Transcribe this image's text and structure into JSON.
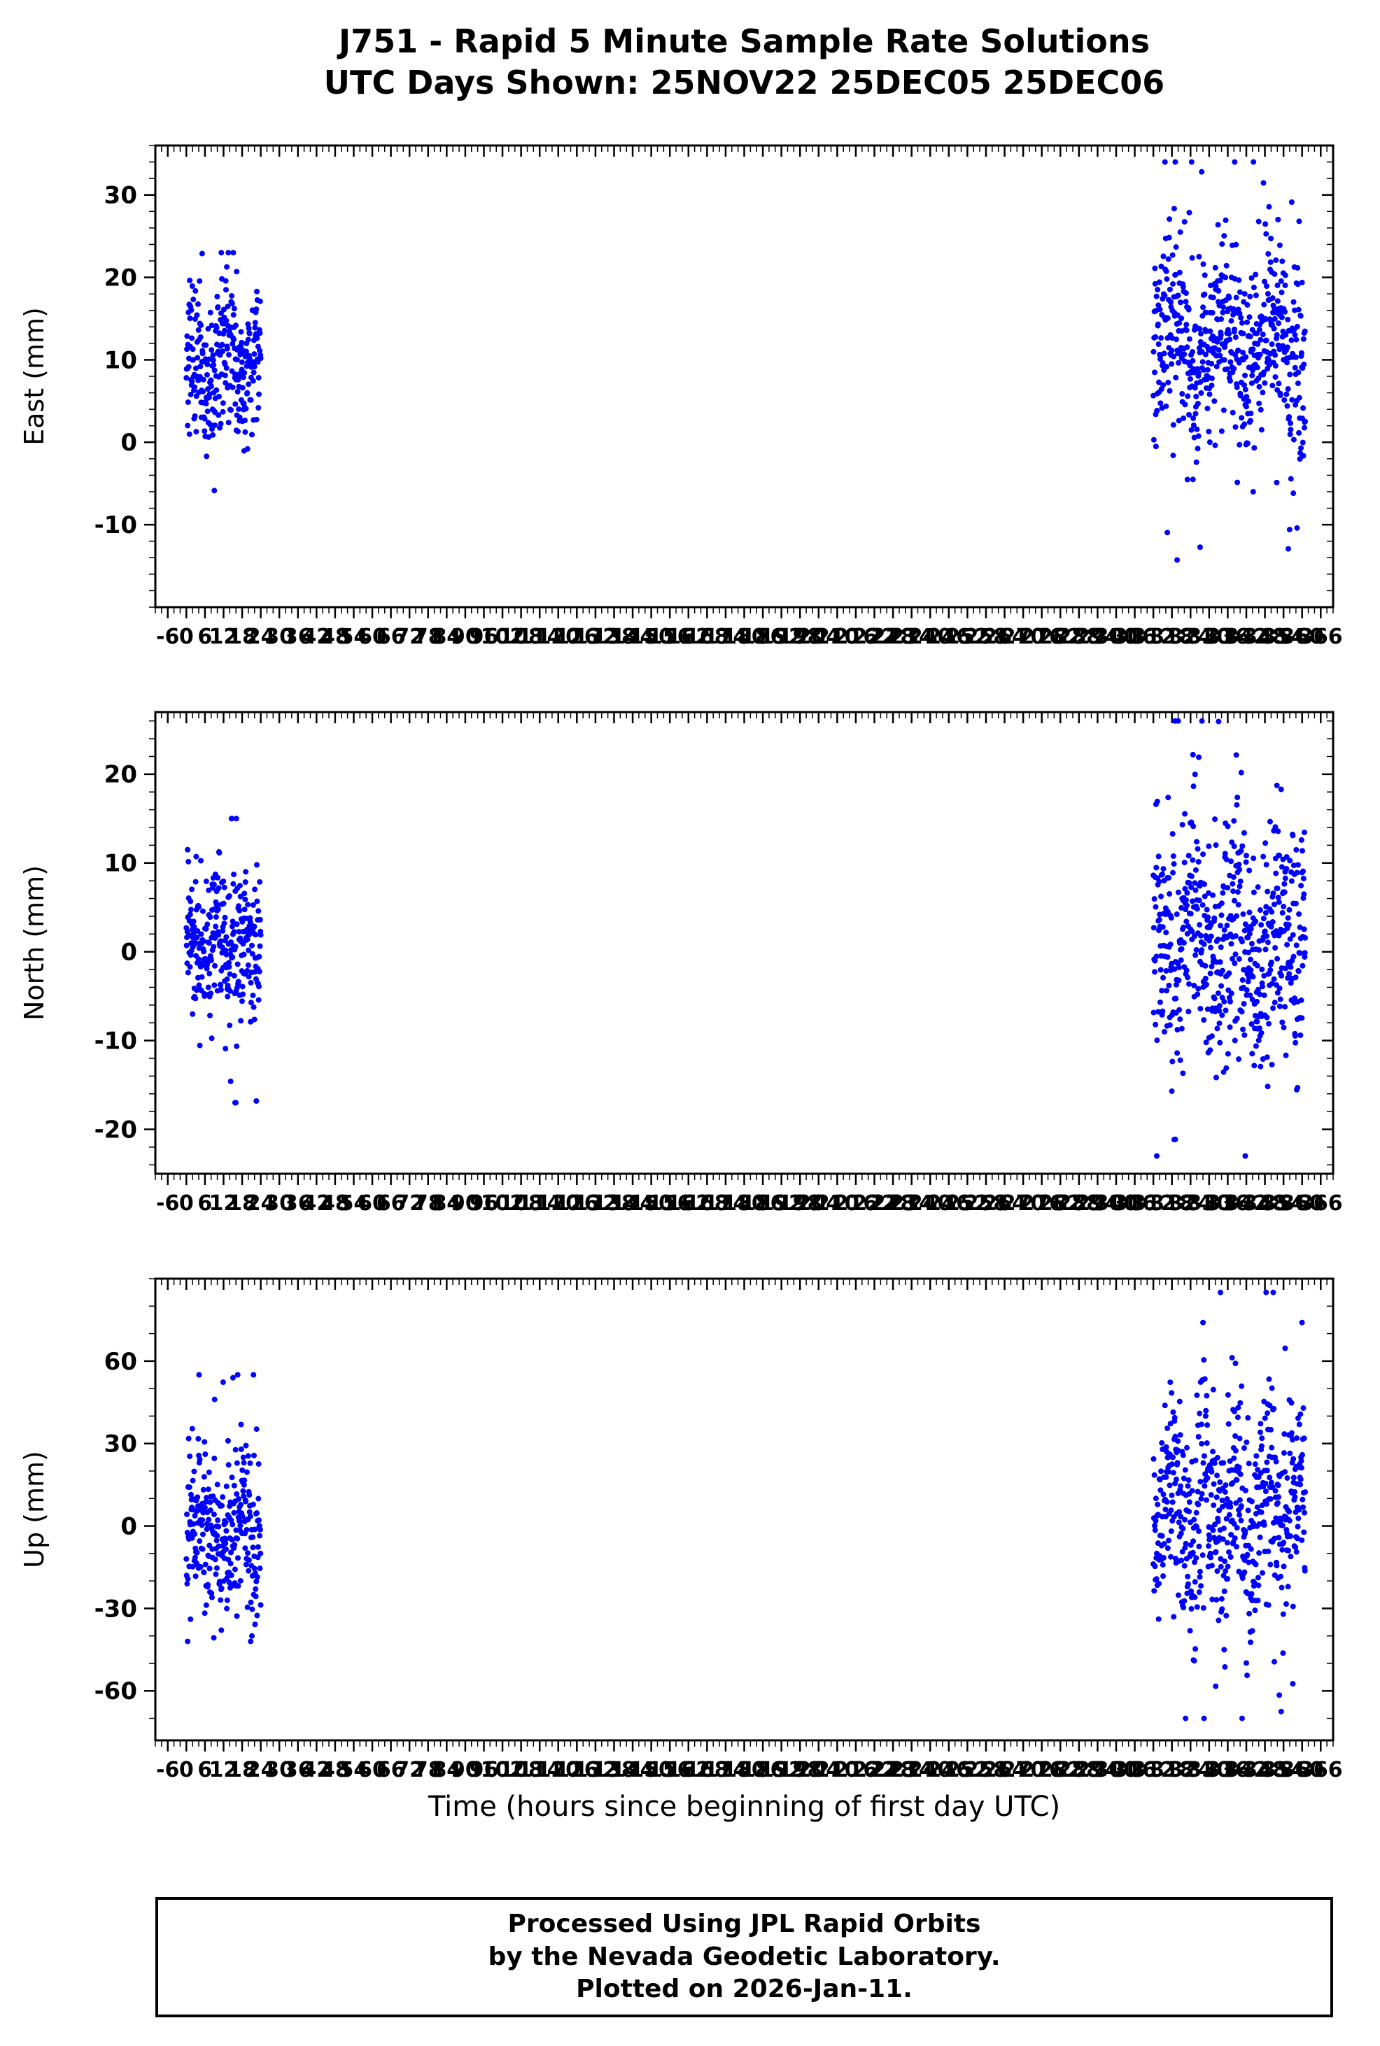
{
  "title": {
    "line1": "J751 - Rapid 5 Minute Sample Rate Solutions",
    "line2": "UTC Days Shown:  25NOV22 25DEC05 25DEC06"
  },
  "xaxis": {
    "label": "Time (hours since beginning of first day UTC)",
    "min": -10,
    "max": 370,
    "tick_start": -6,
    "tick_end": 366,
    "tick_step": 6,
    "minor_step": 2
  },
  "marker_color": "#0000ff",
  "footer": {
    "line1": "Processed Using JPL Rapid Orbits",
    "line2": "by the Nevada Geodetic Laboratory.",
    "line3": "Plotted on 2026-Jan-11."
  },
  "chart_data": [
    {
      "type": "scatter",
      "ylabel": "East (mm)",
      "ylim": [
        -20,
        36
      ],
      "yticks": [
        -10,
        0,
        10,
        20,
        30
      ],
      "y_minor_step": 2,
      "marker_radius": 4,
      "clusters": [
        {
          "x_start": 0,
          "x_end": 24,
          "n": 288,
          "y_mean": 9.5,
          "y_std": 4.5,
          "y_min": -9,
          "y_max": 23,
          "wander_amp": 2,
          "wander_period": 11
        },
        {
          "x_start": 312,
          "x_end": 361,
          "n": 576,
          "y_mean": 12,
          "y_std": 6,
          "y_min": -17,
          "y_max": 34,
          "wander_amp": 3,
          "wander_period": 16
        }
      ]
    },
    {
      "type": "scatter",
      "ylabel": "North (mm)",
      "ylim": [
        -25,
        27
      ],
      "yticks": [
        -20,
        -10,
        0,
        10,
        20
      ],
      "y_minor_step": 2,
      "marker_radius": 4,
      "clusters": [
        {
          "x_start": 0,
          "x_end": 24,
          "n": 288,
          "y_mean": 1,
          "y_std": 4.5,
          "y_min": -17,
          "y_max": 15,
          "wander_amp": 2,
          "wander_period": 9
        },
        {
          "x_start": 312,
          "x_end": 361,
          "n": 576,
          "y_mean": 1.5,
          "y_std": 6.5,
          "y_min": -23,
          "y_max": 26,
          "wander_amp": 3,
          "wander_period": 14
        }
      ]
    },
    {
      "type": "scatter",
      "ylabel": "Up (mm)",
      "ylim": [
        -78,
        90
      ],
      "yticks": [
        -60,
        -30,
        0,
        30,
        60
      ],
      "y_minor_step": 10,
      "marker_radius": 4,
      "clusters": [
        {
          "x_start": 0,
          "x_end": 24,
          "n": 288,
          "y_mean": -3,
          "y_std": 15,
          "y_min": -42,
          "y_max": 55,
          "wander_amp": 8,
          "wander_period": 13
        },
        {
          "x_start": 312,
          "x_end": 361,
          "n": 576,
          "y_mean": 6,
          "y_std": 20,
          "y_min": -70,
          "y_max": 85,
          "wander_amp": 14,
          "wander_period": 10
        }
      ]
    }
  ]
}
